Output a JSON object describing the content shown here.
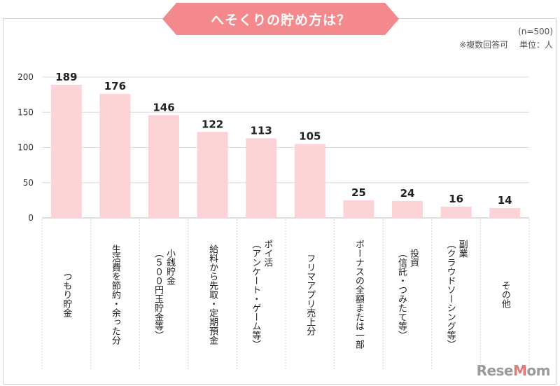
{
  "title": "へそくりの貯め方は？",
  "notes": {
    "sample": "(n=500)",
    "extra": "※複数回答可　 単位：人"
  },
  "watermark": "ReseMom",
  "colors": {
    "banner": "#f3898c",
    "bar": "#fcd3d6",
    "grid": "#dcdcdc"
  },
  "chart_data": {
    "type": "bar",
    "title": "へそくりの貯め方は？",
    "categories": [
      "つもり貯金",
      "生活費を節約・余った分",
      "小銭貯金\n（５００円玉貯金等）",
      "給料から先取・定期預金",
      "ポイ活\n（アンケート・ゲーム等）",
      "フリマアプリ売上分",
      "ボーナスの全額または一部",
      "投資\n（信託・つみたて等）",
      "副業\n（クラウドソーシング等）",
      "その他"
    ],
    "values": [
      189,
      176,
      146,
      122,
      113,
      105,
      25,
      24,
      16,
      14
    ],
    "value_labels": [
      "189",
      "176",
      "146",
      "122",
      "113",
      "105",
      "25",
      "24",
      "16",
      "14"
    ],
    "y_ticks": [
      "0",
      "50",
      "100",
      "150",
      "200"
    ],
    "ylim": [
      0,
      200
    ],
    "grid": true,
    "legend": false
  }
}
